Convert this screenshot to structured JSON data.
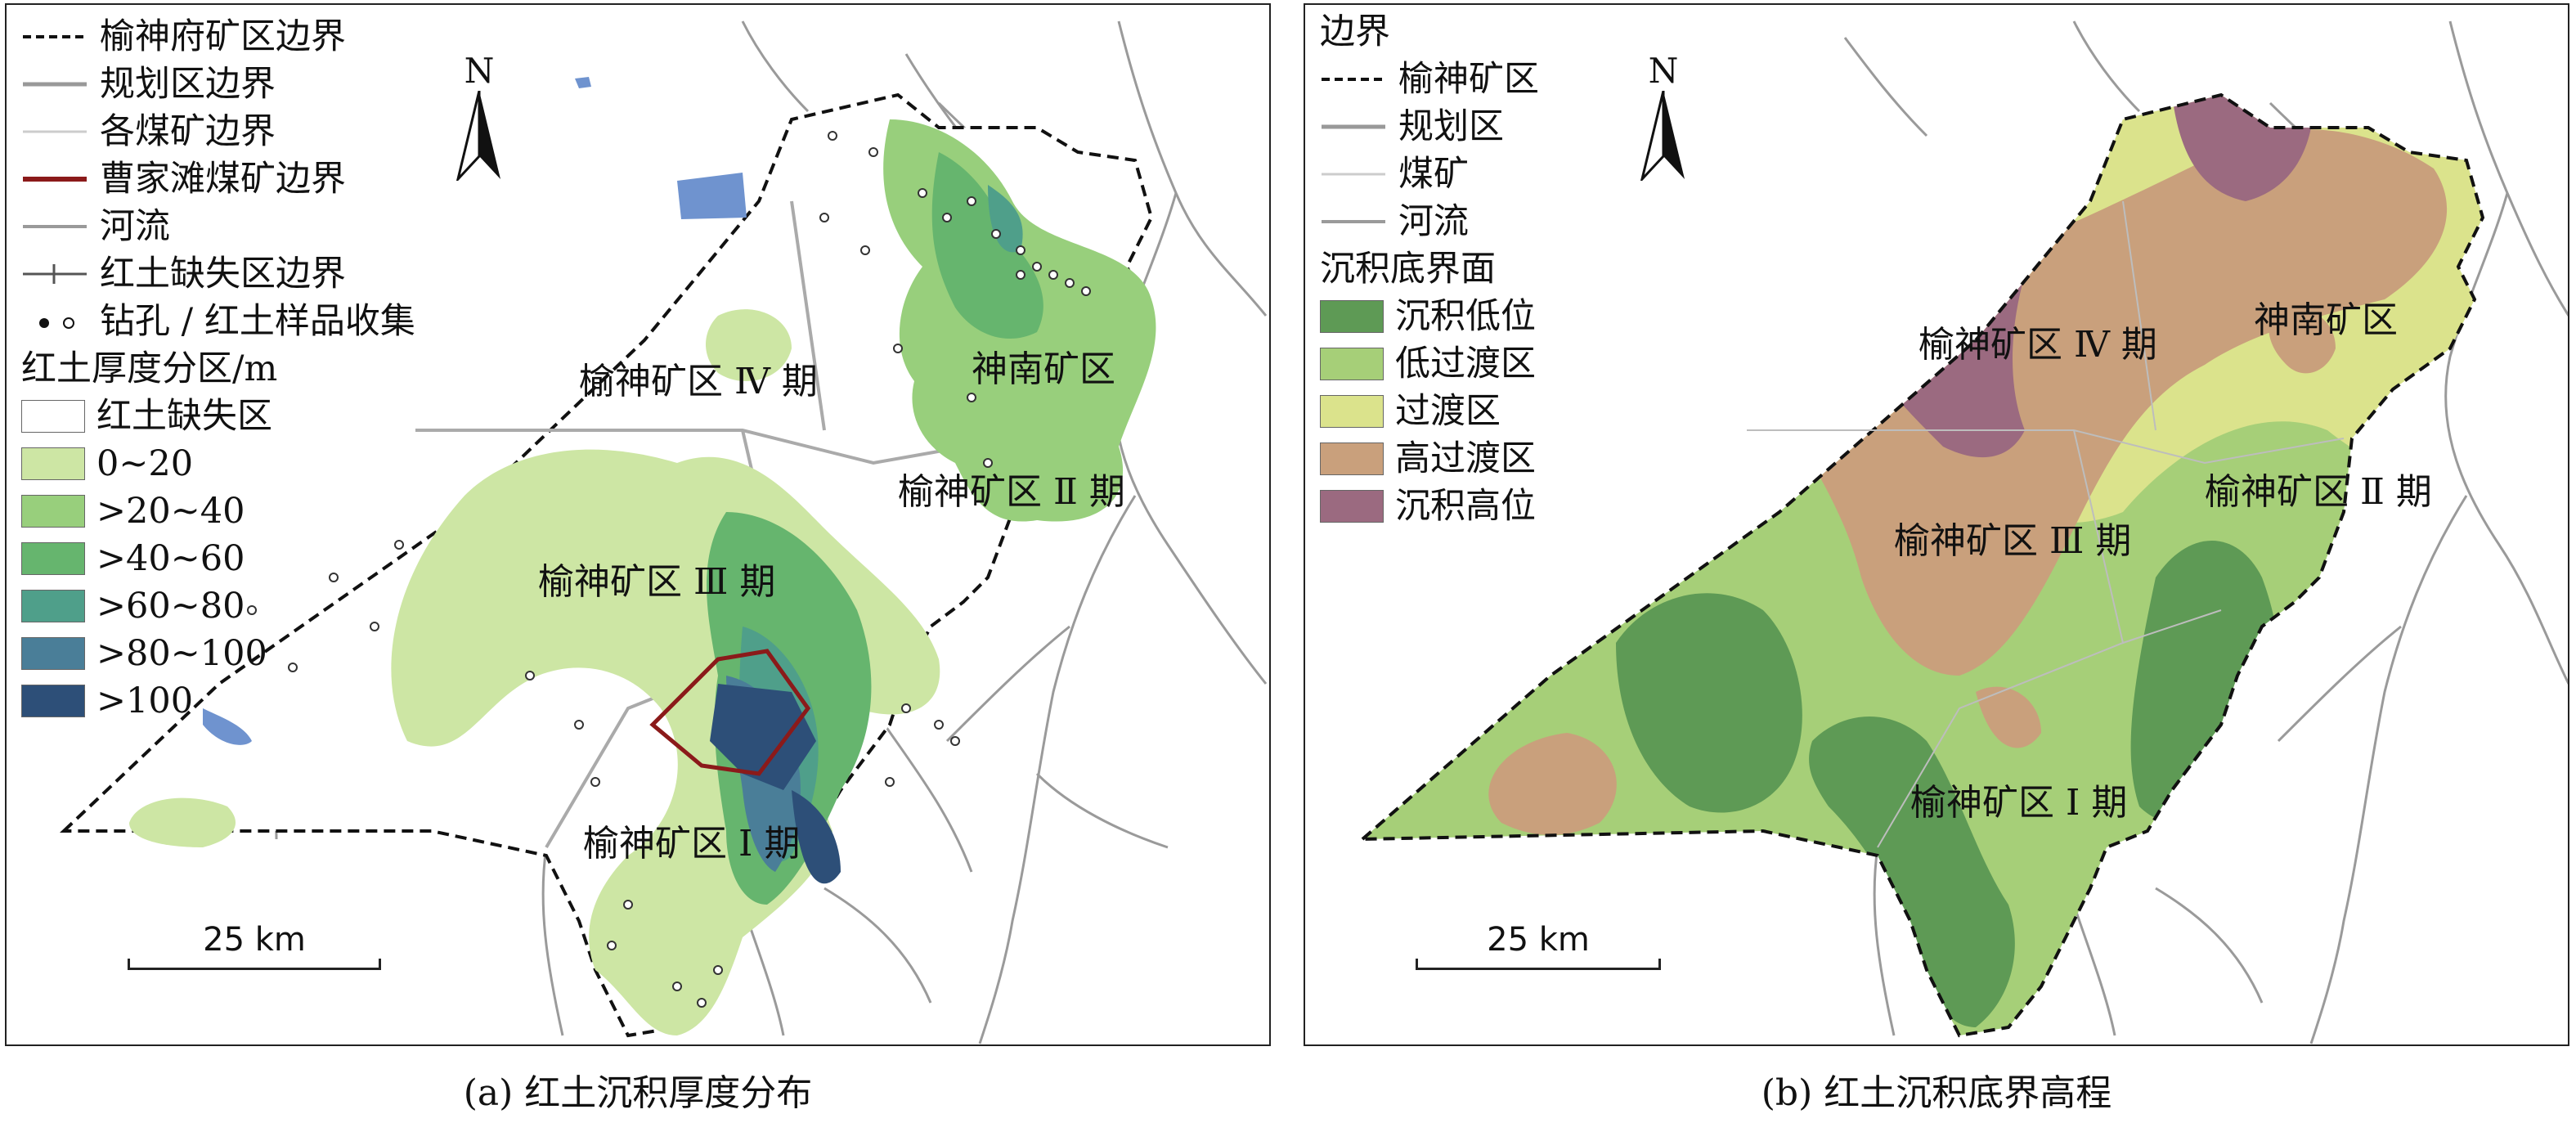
{
  "panel_a": {
    "caption": "(a) 红土沉积厚度分布",
    "legend_lines": [
      {
        "label": "榆神府矿区边界",
        "style": "dashed-black"
      },
      {
        "label": "规划区边界",
        "style": "solid-gray"
      },
      {
        "label": "各煤矿边界",
        "style": "thin-light"
      },
      {
        "label": "曹家滩煤矿边界",
        "style": "solid-darkred"
      },
      {
        "label": "河流",
        "style": "solid-gray-thin"
      },
      {
        "label": "红土缺失区边界",
        "style": "tick-line"
      },
      {
        "label": "钻孔 / 红土样品收集",
        "style": "dots"
      }
    ],
    "thickness_title": "红土厚度分区/m",
    "thickness_classes": [
      {
        "label": "红土缺失区",
        "color": "#ffffff"
      },
      {
        "label": "0~20",
        "color": "#cde6a4"
      },
      {
        "label": ">20~40",
        "color": "#98cf7c"
      },
      {
        "label": ">40~60",
        "color": "#66b56e"
      },
      {
        "label": ">60~80",
        "color": "#4f9f8a"
      },
      {
        "label": ">80~100",
        "color": "#4a7e98"
      },
      {
        "label": ">100",
        "color": "#2d4f78"
      }
    ],
    "north": "N",
    "scale": "25 km",
    "regions": [
      "榆神矿区 Ⅳ 期",
      "神南矿区",
      "榆神矿区 Ⅱ 期",
      "榆神矿区 Ⅲ 期",
      "榆神矿区 Ⅰ 期"
    ]
  },
  "panel_b": {
    "caption": "(b) 红土沉积底界高程",
    "boundary_title": "边界",
    "legend_lines": [
      {
        "label": "榆神矿区",
        "style": "dashed-black"
      },
      {
        "label": "规划区",
        "style": "solid-gray"
      },
      {
        "label": "煤矿",
        "style": "thin-light"
      },
      {
        "label": "河流",
        "style": "solid-gray-thin"
      }
    ],
    "surface_title": "沉积底界面",
    "surface_classes": [
      {
        "label": "沉积低位",
        "color": "#5e9a55"
      },
      {
        "label": "低过渡区",
        "color": "#a6cf78"
      },
      {
        "label": "过渡区",
        "color": "#dbe38c"
      },
      {
        "label": "高过渡区",
        "color": "#c9a07c"
      },
      {
        "label": "沉积高位",
        "color": "#9b6a80"
      }
    ],
    "north": "N",
    "scale": "25 km",
    "regions": [
      "榆神矿区 Ⅳ 期",
      "神南矿区",
      "榆神矿区 Ⅱ 期",
      "榆神矿区 Ⅲ 期",
      "榆神矿区 Ⅰ 期"
    ]
  }
}
